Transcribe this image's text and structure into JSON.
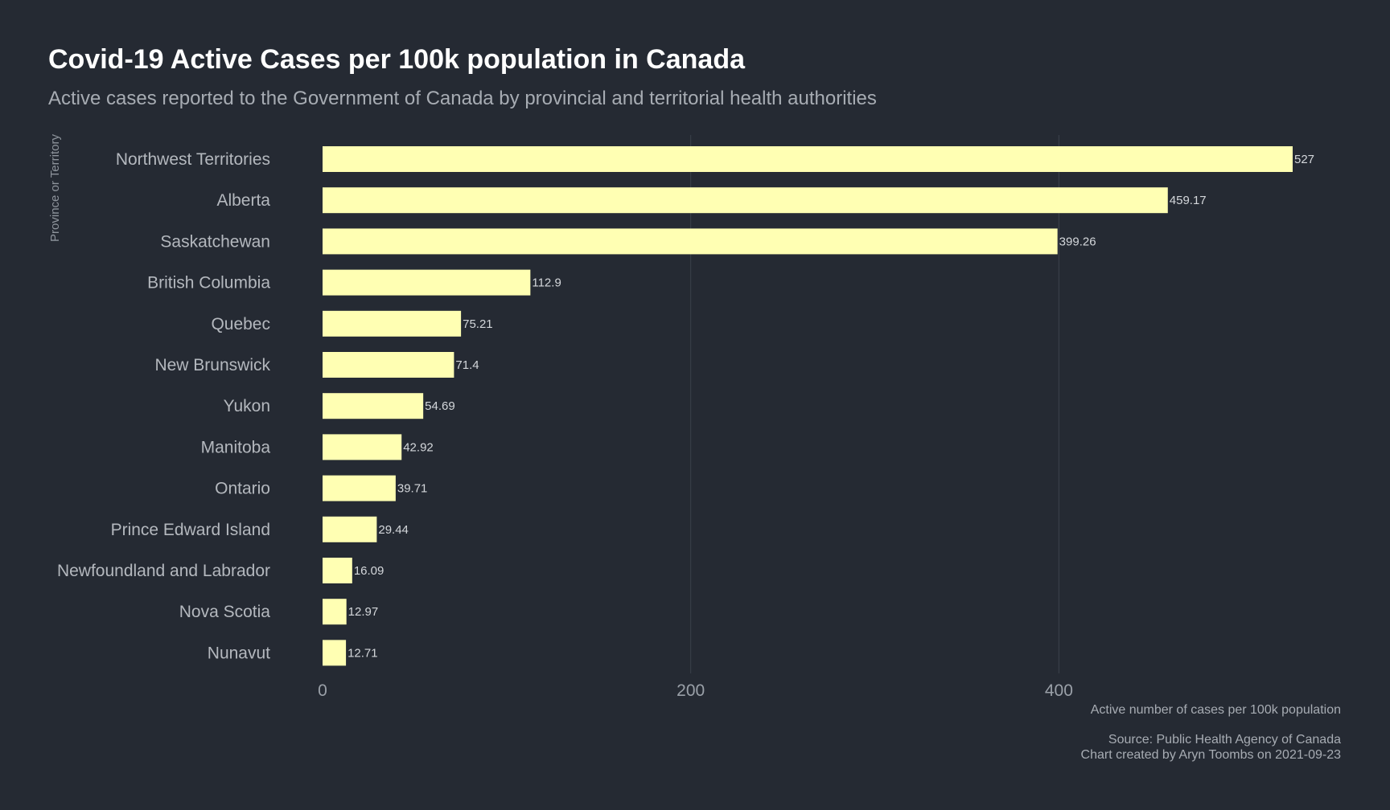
{
  "chart_data": {
    "type": "bar",
    "orientation": "horizontal",
    "title": "Covid-19 Active Cases per 100k population in Canada",
    "subtitle": "Active cases reported to the Government of Canada by provincial and territorial health authorities",
    "xlabel": "Active number of cases per 100k population",
    "ylabel": "Province or Territory",
    "caption_lines": [
      "Source: Public Health Agency of Canada",
      "Chart created by Aryn Toombs on 2021-09-23"
    ],
    "categories": [
      "Northwest Territories",
      "Alberta",
      "Saskatchewan",
      "British Columbia",
      "Quebec",
      "New Brunswick",
      "Yukon",
      "Manitoba",
      "Ontario",
      "Prince Edward Island",
      "Newfoundland and Labrador",
      "Nova Scotia",
      "Nunavut"
    ],
    "values": [
      527,
      459.17,
      399.26,
      112.9,
      75.21,
      71.4,
      54.69,
      42.92,
      39.71,
      29.44,
      16.09,
      12.97,
      12.71
    ],
    "value_labels": [
      "527",
      "459.17",
      "399.26",
      "112.9",
      "75.21",
      "71.4",
      "54.69",
      "42.92",
      "39.71",
      "29.44",
      "16.09",
      "12.97",
      "12.71"
    ],
    "x_ticks": [
      0,
      200,
      400
    ],
    "x_tick_labels": [
      "0",
      "200",
      "400"
    ],
    "xlim": [
      0,
      527
    ],
    "grid": "vertical-major",
    "legend": "none",
    "colors": {
      "background": "#252a33",
      "bar": "#ffffb3",
      "grid": "#3b414b"
    }
  }
}
